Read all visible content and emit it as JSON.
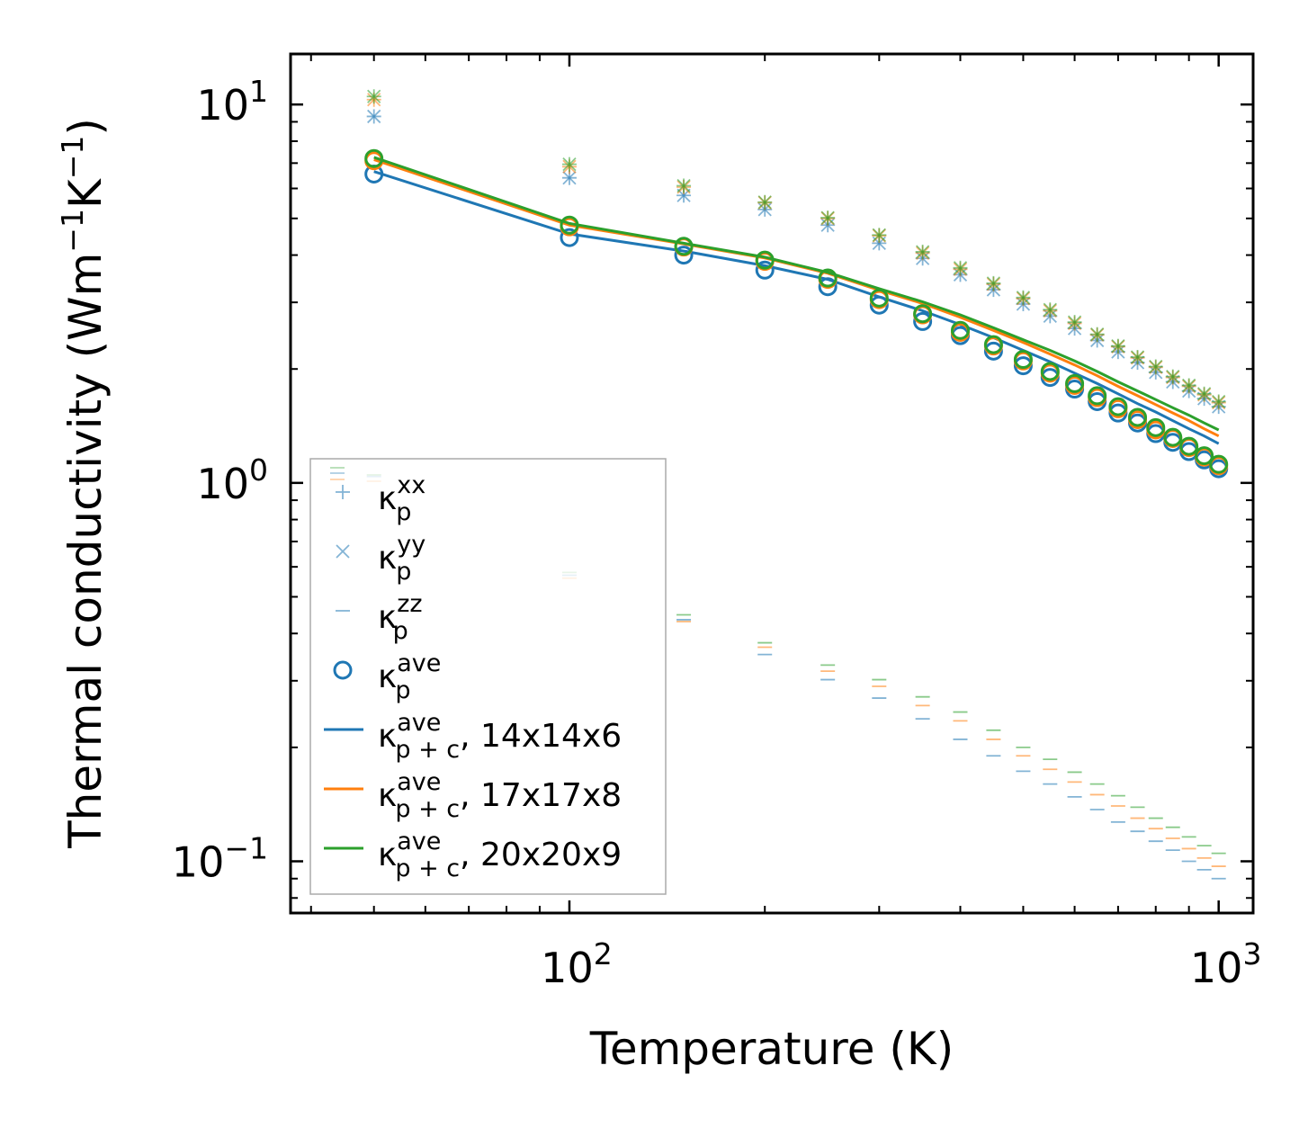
{
  "chart_data": {
    "type": "scatter",
    "title": "",
    "xlabel": "Temperature (K)",
    "ylabel": "Thermal conductivity (Wm",
    "ylabel_unit_parts": [
      "−1",
      "K",
      "−1",
      ")"
    ],
    "xscale": "log",
    "yscale": "log",
    "xlim": [
      37.2,
      1130
    ],
    "ylim": [
      0.073,
      13.6
    ],
    "x_ticks": [
      {
        "base": "10",
        "exp": "2",
        "value": 100
      },
      {
        "base": "10",
        "exp": "3",
        "value": 1000
      }
    ],
    "y_ticks": [
      {
        "base": "10",
        "exp": "−1",
        "value": 0.1
      },
      {
        "base": "10",
        "exp": "0",
        "value": 1
      },
      {
        "base": "10",
        "exp": "1",
        "value": 10
      }
    ],
    "colors": {
      "blue": "#1f77b4",
      "orange": "#ff7f0e",
      "green": "#2ca02c"
    },
    "x": [
      50,
      100,
      150,
      200,
      250,
      300,
      350,
      400,
      450,
      500,
      550,
      600,
      650,
      700,
      750,
      800,
      850,
      900,
      950,
      1000
    ],
    "legend": {
      "position": "lower-left",
      "entries": [
        {
          "marker": "plus",
          "base": "κ",
          "sub": "p",
          "sup": "xx",
          "suffix": ""
        },
        {
          "marker": "x",
          "base": "κ",
          "sub": "p",
          "sup": "yy",
          "suffix": ""
        },
        {
          "marker": "hline",
          "base": "κ",
          "sub": "p",
          "sup": "zz",
          "suffix": ""
        },
        {
          "marker": "circle",
          "base": "κ",
          "sub": "p",
          "sup": "ave",
          "suffix": ""
        },
        {
          "marker": "line",
          "base": "κ",
          "sub": "p + c",
          "sup": "ave",
          "suffix": ", 14x14x6"
        },
        {
          "marker": "line",
          "base": "κ",
          "sub": "p + c",
          "sup": "ave",
          "suffix": ", 17x17x8"
        },
        {
          "marker": "line",
          "base": "κ",
          "sub": "p + c",
          "sup": "ave",
          "suffix": ", 20x20x9"
        }
      ]
    },
    "series": [
      {
        "name": "14x14x6",
        "color": "#1f77b4",
        "kxx": [
          9.3,
          6.4,
          5.75,
          5.28,
          4.8,
          4.3,
          3.92,
          3.55,
          3.24,
          2.97,
          2.76,
          2.56,
          2.38,
          2.22,
          2.08,
          1.96,
          1.85,
          1.75,
          1.67,
          1.59
        ],
        "kyy": [
          9.3,
          6.4,
          5.75,
          5.28,
          4.8,
          4.3,
          3.92,
          3.55,
          3.24,
          2.97,
          2.76,
          2.56,
          2.38,
          2.22,
          2.08,
          1.96,
          1.85,
          1.75,
          1.67,
          1.59
        ],
        "kzz": [
          1.04,
          0.57,
          0.435,
          0.352,
          0.302,
          0.27,
          0.238,
          0.21,
          0.19,
          0.173,
          0.16,
          0.148,
          0.137,
          0.127,
          0.12,
          0.113,
          0.107,
          0.1,
          0.095,
          0.09
        ],
        "kave": [
          6.55,
          4.45,
          4.0,
          3.65,
          3.3,
          2.95,
          2.67,
          2.45,
          2.23,
          2.04,
          1.9,
          1.77,
          1.64,
          1.53,
          1.44,
          1.35,
          1.28,
          1.21,
          1.15,
          1.09
        ],
        "kpc": [
          6.65,
          4.55,
          4.1,
          3.75,
          3.45,
          3.1,
          2.85,
          2.62,
          2.42,
          2.24,
          2.09,
          1.95,
          1.83,
          1.72,
          1.62,
          1.54,
          1.46,
          1.39,
          1.33,
          1.27
        ]
      },
      {
        "name": "17x17x8",
        "color": "#ff7f0e",
        "kxx": [
          10.3,
          6.85,
          6.05,
          5.5,
          5.0,
          4.5,
          4.05,
          3.67,
          3.35,
          3.07,
          2.85,
          2.64,
          2.46,
          2.29,
          2.14,
          2.02,
          1.9,
          1.8,
          1.71,
          1.63
        ],
        "kyy": [
          10.3,
          6.85,
          6.05,
          5.5,
          5.0,
          4.5,
          4.05,
          3.67,
          3.35,
          3.07,
          2.85,
          2.64,
          2.46,
          2.29,
          2.14,
          2.02,
          1.9,
          1.8,
          1.71,
          1.63
        ],
        "kzz": [
          1.01,
          0.56,
          0.43,
          0.368,
          0.318,
          0.29,
          0.258,
          0.235,
          0.21,
          0.19,
          0.175,
          0.162,
          0.15,
          0.14,
          0.13,
          0.122,
          0.115,
          0.108,
          0.102,
          0.097
        ],
        "kave": [
          7.1,
          4.75,
          4.2,
          3.85,
          3.45,
          3.05,
          2.78,
          2.5,
          2.3,
          2.1,
          1.95,
          1.81,
          1.68,
          1.57,
          1.47,
          1.38,
          1.31,
          1.24,
          1.17,
          1.11
        ],
        "kpc": [
          7.15,
          4.8,
          4.28,
          3.93,
          3.58,
          3.23,
          2.98,
          2.74,
          2.53,
          2.35,
          2.19,
          2.05,
          1.92,
          1.8,
          1.7,
          1.61,
          1.53,
          1.46,
          1.39,
          1.33
        ]
      },
      {
        "name": "20x20x9",
        "color": "#2ca02c",
        "kxx": [
          10.5,
          6.95,
          6.1,
          5.52,
          5.02,
          4.52,
          4.08,
          3.7,
          3.37,
          3.09,
          2.87,
          2.66,
          2.47,
          2.3,
          2.15,
          2.03,
          1.91,
          1.81,
          1.72,
          1.64
        ],
        "kyy": [
          10.5,
          6.95,
          6.1,
          5.52,
          5.02,
          4.52,
          4.08,
          3.7,
          3.37,
          3.09,
          2.87,
          2.66,
          2.47,
          2.3,
          2.15,
          2.03,
          1.91,
          1.81,
          1.72,
          1.64
        ],
        "kzz": [
          1.05,
          0.58,
          0.448,
          0.378,
          0.33,
          0.302,
          0.272,
          0.248,
          0.222,
          0.2,
          0.186,
          0.172,
          0.16,
          0.149,
          0.139,
          0.13,
          0.123,
          0.116,
          0.11,
          0.105
        ],
        "kave": [
          7.2,
          4.8,
          4.22,
          3.88,
          3.48,
          3.08,
          2.8,
          2.53,
          2.32,
          2.12,
          1.97,
          1.83,
          1.7,
          1.59,
          1.49,
          1.4,
          1.32,
          1.25,
          1.18,
          1.12
        ],
        "kpc": [
          7.25,
          4.85,
          4.3,
          3.95,
          3.6,
          3.26,
          3.01,
          2.78,
          2.57,
          2.39,
          2.24,
          2.1,
          1.97,
          1.85,
          1.75,
          1.66,
          1.58,
          1.51,
          1.44,
          1.38
        ]
      }
    ]
  }
}
